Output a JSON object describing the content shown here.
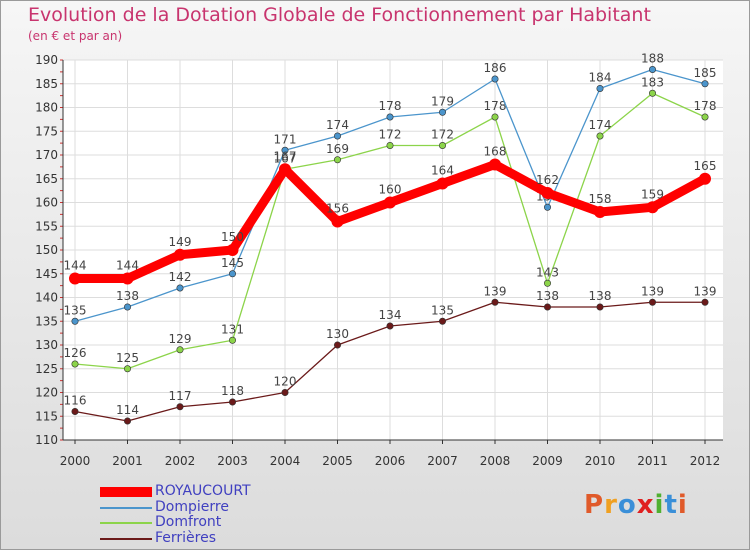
{
  "header": {
    "title": "Evolution de la Dotation Globale de Fonctionnement par Habitant",
    "subtitle": "(en € et par an)"
  },
  "logo": {
    "text": "Proxiti",
    "colors": [
      "#e05a2a",
      "#f0a020",
      "#3a8fd8",
      "#e02020",
      "#50b030",
      "#3a8fd8",
      "#e05a2a"
    ]
  },
  "chart_data": {
    "type": "line",
    "x": [
      "2000",
      "2001",
      "2002",
      "2003",
      "2004",
      "2005",
      "2006",
      "2007",
      "2008",
      "2009",
      "2010",
      "2011",
      "2012"
    ],
    "ylim": [
      110,
      190
    ],
    "yticks": [
      110,
      115,
      120,
      125,
      130,
      135,
      140,
      145,
      150,
      155,
      160,
      165,
      170,
      175,
      180,
      185,
      190
    ],
    "grid": true,
    "legend_position": "bottom-left",
    "series": [
      {
        "name": "ROYAUCOURT",
        "color": "#ff0000",
        "values": [
          144,
          144,
          149,
          150,
          167,
          156,
          160,
          164,
          168,
          162,
          158,
          159,
          165
        ]
      },
      {
        "name": "Dompierre",
        "color": "#4b95cc",
        "values": [
          135,
          138,
          142,
          145,
          171,
          174,
          178,
          179,
          186,
          159,
          184,
          188,
          185
        ]
      },
      {
        "name": "Domfront",
        "color": "#8cd44a",
        "values": [
          126,
          125,
          129,
          131,
          167,
          169,
          172,
          172,
          178,
          143,
          174,
          183,
          178
        ]
      },
      {
        "name": "Ferrières",
        "color": "#6b1a1a",
        "values": [
          116,
          114,
          117,
          118,
          120,
          130,
          134,
          135,
          139,
          138,
          138,
          139,
          139
        ]
      }
    ]
  }
}
